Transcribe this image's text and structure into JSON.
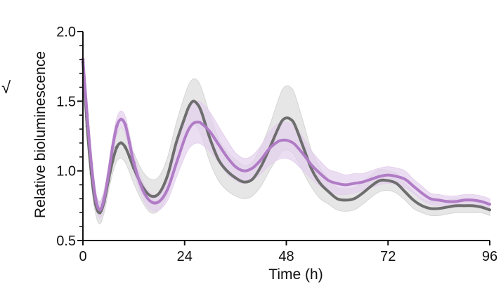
{
  "chart_data": {
    "type": "line",
    "title": "",
    "panel_mark": "√",
    "xlabel": "Time (h)",
    "ylabel": "Relative bioluminescence",
    "xlim": [
      0,
      96
    ],
    "ylim": [
      0.5,
      2.0
    ],
    "x_ticks": [
      0,
      24,
      48,
      72,
      96
    ],
    "x_tick_labels": [
      "0",
      "24",
      "48",
      "72",
      "96"
    ],
    "y_ticks": [
      0.5,
      1.0,
      1.5,
      2.0
    ],
    "y_tick_labels": [
      "0.5",
      "1.0",
      "1.5",
      "2.0"
    ],
    "y_minor_ticks": [
      0.6,
      0.7,
      0.8,
      0.9,
      1.1,
      1.2,
      1.3,
      1.4,
      1.6,
      1.7,
      1.8,
      1.9
    ],
    "grid": false,
    "legend": "none",
    "x": [
      0,
      1,
      2,
      3,
      4,
      5,
      6,
      7,
      8,
      9,
      10,
      11,
      12,
      14,
      16,
      18,
      20,
      22,
      24,
      25,
      26,
      27,
      28,
      30,
      32,
      34,
      36,
      38,
      40,
      42,
      44,
      46,
      47,
      48,
      49,
      50,
      52,
      54,
      56,
      58,
      60,
      62,
      64,
      66,
      68,
      70,
      72,
      74,
      76,
      78,
      80,
      82,
      84,
      86,
      88,
      90,
      92,
      94,
      96
    ],
    "series": [
      {
        "name": "gray",
        "color": "#6e6e6e",
        "band_color": "#d5d5d5",
        "values": [
          1.78,
          1.32,
          0.98,
          0.76,
          0.7,
          0.78,
          0.93,
          1.07,
          1.17,
          1.2,
          1.17,
          1.1,
          1.02,
          0.89,
          0.82,
          0.84,
          0.97,
          1.2,
          1.38,
          1.46,
          1.5,
          1.48,
          1.42,
          1.23,
          1.08,
          1.0,
          0.95,
          0.92,
          0.94,
          1.03,
          1.16,
          1.3,
          1.36,
          1.38,
          1.37,
          1.33,
          1.17,
          1.01,
          0.91,
          0.85,
          0.8,
          0.79,
          0.8,
          0.84,
          0.89,
          0.93,
          0.93,
          0.91,
          0.85,
          0.79,
          0.75,
          0.73,
          0.73,
          0.74,
          0.75,
          0.75,
          0.75,
          0.74,
          0.72
        ],
        "lower": [
          1.72,
          1.25,
          0.9,
          0.69,
          0.62,
          0.7,
          0.85,
          0.98,
          1.07,
          1.09,
          1.06,
          0.99,
          0.91,
          0.78,
          0.7,
          0.72,
          0.84,
          1.06,
          1.22,
          1.3,
          1.34,
          1.31,
          1.25,
          1.06,
          0.93,
          0.86,
          0.82,
          0.8,
          0.82,
          0.89,
          1.0,
          1.1,
          1.14,
          1.15,
          1.14,
          1.11,
          0.99,
          0.88,
          0.8,
          0.76,
          0.72,
          0.71,
          0.72,
          0.76,
          0.81,
          0.85,
          0.86,
          0.84,
          0.79,
          0.73,
          0.7,
          0.68,
          0.68,
          0.69,
          0.7,
          0.7,
          0.7,
          0.7,
          0.68
        ],
        "upper": [
          1.84,
          1.39,
          1.06,
          0.83,
          0.78,
          0.86,
          1.01,
          1.16,
          1.27,
          1.31,
          1.28,
          1.21,
          1.13,
          1.0,
          0.94,
          0.96,
          1.1,
          1.34,
          1.54,
          1.62,
          1.66,
          1.65,
          1.59,
          1.4,
          1.23,
          1.14,
          1.08,
          1.04,
          1.06,
          1.17,
          1.32,
          1.5,
          1.58,
          1.61,
          1.6,
          1.55,
          1.35,
          1.14,
          1.02,
          0.94,
          0.88,
          0.87,
          0.88,
          0.92,
          0.97,
          1.01,
          1.0,
          0.98,
          0.91,
          0.85,
          0.8,
          0.78,
          0.78,
          0.79,
          0.8,
          0.8,
          0.8,
          0.78,
          0.76
        ]
      },
      {
        "name": "purple",
        "color": "#b07cc6",
        "band_color": "#e4d0ec",
        "values": [
          1.8,
          1.4,
          1.05,
          0.8,
          0.72,
          0.8,
          0.97,
          1.17,
          1.32,
          1.37,
          1.33,
          1.2,
          1.06,
          0.87,
          0.78,
          0.78,
          0.87,
          1.05,
          1.23,
          1.3,
          1.34,
          1.35,
          1.34,
          1.28,
          1.19,
          1.1,
          1.03,
          1.0,
          1.02,
          1.08,
          1.16,
          1.21,
          1.22,
          1.22,
          1.21,
          1.19,
          1.12,
          1.04,
          0.98,
          0.93,
          0.91,
          0.9,
          0.91,
          0.92,
          0.94,
          0.96,
          0.97,
          0.96,
          0.94,
          0.89,
          0.84,
          0.8,
          0.79,
          0.78,
          0.78,
          0.79,
          0.79,
          0.78,
          0.76
        ],
        "lower": [
          1.74,
          1.33,
          0.98,
          0.74,
          0.66,
          0.74,
          0.91,
          1.11,
          1.26,
          1.31,
          1.27,
          1.14,
          1.0,
          0.81,
          0.72,
          0.72,
          0.79,
          0.95,
          1.1,
          1.16,
          1.19,
          1.2,
          1.19,
          1.14,
          1.06,
          0.98,
          0.93,
          0.91,
          0.93,
          0.98,
          1.04,
          1.08,
          1.09,
          1.09,
          1.08,
          1.06,
          1.0,
          0.94,
          0.89,
          0.85,
          0.83,
          0.83,
          0.84,
          0.86,
          0.88,
          0.9,
          0.91,
          0.9,
          0.88,
          0.84,
          0.79,
          0.76,
          0.75,
          0.74,
          0.74,
          0.75,
          0.75,
          0.74,
          0.72
        ],
        "upper": [
          1.86,
          1.47,
          1.12,
          0.86,
          0.78,
          0.86,
          1.03,
          1.23,
          1.38,
          1.43,
          1.39,
          1.26,
          1.12,
          0.93,
          0.84,
          0.84,
          0.95,
          1.15,
          1.36,
          1.44,
          1.49,
          1.5,
          1.49,
          1.42,
          1.32,
          1.22,
          1.13,
          1.09,
          1.11,
          1.18,
          1.28,
          1.34,
          1.35,
          1.35,
          1.34,
          1.32,
          1.24,
          1.14,
          1.07,
          1.01,
          0.99,
          0.97,
          0.98,
          0.98,
          1.0,
          1.02,
          1.03,
          1.02,
          1.0,
          0.94,
          0.89,
          0.84,
          0.83,
          0.82,
          0.82,
          0.83,
          0.83,
          0.82,
          0.8
        ]
      }
    ]
  }
}
